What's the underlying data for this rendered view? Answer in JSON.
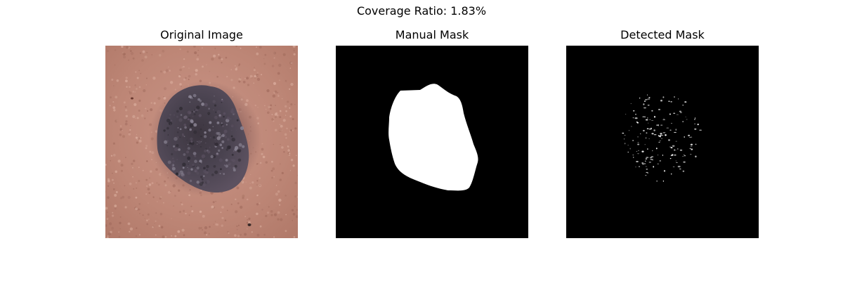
{
  "figure": {
    "suptitle": "Coverage Ratio: 1.83%",
    "panels": [
      {
        "title": "Original Image"
      },
      {
        "title": "Manual Mask"
      },
      {
        "title": "Detected Mask"
      }
    ]
  },
  "colors": {
    "background": "#ffffff",
    "mask_background": "#000000",
    "mask_foreground": "#ffffff",
    "skin": "#c08a78",
    "lesion": "#4a4450"
  }
}
